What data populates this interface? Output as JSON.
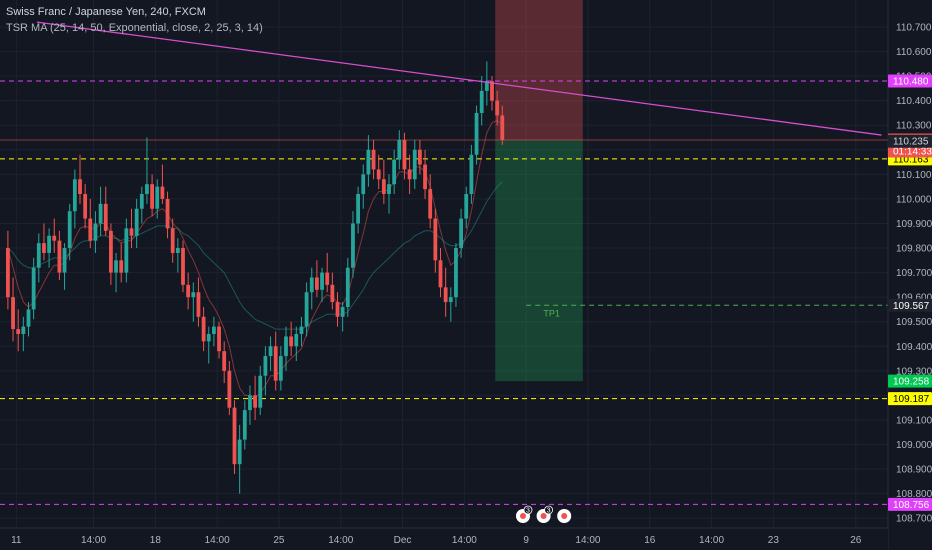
{
  "header": {
    "title": "Swiss Franc / Japanese Yen, 240, FXCM",
    "indicator": "TSR MA (25, 14, 50, Exponential, close, 2, 25, 3, 14)"
  },
  "colors": {
    "background": "#131722",
    "grid": "#1e2230",
    "bull": "#26a69a",
    "bear": "#ef5350",
    "magenta": "#e040fb",
    "yellow": "#ffff00",
    "green_line": "#4caf50",
    "trend": "#d54fd0"
  },
  "chart_data": {
    "type": "candlestick",
    "symbol": "CHFJPY",
    "timeframe": "240",
    "ylim": [
      108.66,
      110.81
    ],
    "y_ticks": [
      110.7,
      110.6,
      110.5,
      110.4,
      110.3,
      110.2,
      110.1,
      110.0,
      109.9,
      109.8,
      109.7,
      109.6,
      109.5,
      109.4,
      109.3,
      109.2,
      109.1,
      109.0,
      108.9,
      108.8,
      108.7
    ],
    "y_tick_labels": [
      "110.700",
      "110.600",
      "110.500",
      "110.400",
      "110.300",
      "110.200",
      "110.100",
      "110.000",
      "109.900",
      "109.800",
      "109.700",
      "109.600",
      "109.500",
      "109.400",
      "109.300",
      "109.200",
      "109.100",
      "109.000",
      "108.900",
      "108.800",
      "108.700"
    ],
    "x_ticks": [
      {
        "label": "11",
        "bar": 2
      },
      {
        "label": "14:00",
        "bar": 17
      },
      {
        "label": "18",
        "bar": 29
      },
      {
        "label": "14:00",
        "bar": 41
      },
      {
        "label": "25",
        "bar": 53
      },
      {
        "label": "14:00",
        "bar": 65
      },
      {
        "label": "Dec",
        "bar": 77
      },
      {
        "label": "14:00",
        "bar": 89
      },
      {
        "label": "9",
        "bar": 101
      },
      {
        "label": "14:00",
        "bar": 113
      },
      {
        "label": "16",
        "bar": 125
      },
      {
        "label": "14:00",
        "bar": 137
      },
      {
        "label": "23",
        "bar": 149
      },
      {
        "label": "26",
        "bar": 165
      }
    ],
    "candles": [
      [
        109.8,
        109.87,
        109.55,
        109.6
      ],
      [
        109.6,
        109.68,
        109.42,
        109.47
      ],
      [
        109.47,
        109.55,
        109.38,
        109.45
      ],
      [
        109.45,
        109.52,
        109.38,
        109.48
      ],
      [
        109.48,
        109.58,
        109.44,
        109.55
      ],
      [
        109.55,
        109.76,
        109.51,
        109.72
      ],
      [
        109.72,
        109.86,
        109.66,
        109.82
      ],
      [
        109.82,
        109.9,
        109.75,
        109.78
      ],
      [
        109.78,
        109.88,
        109.72,
        109.85
      ],
      [
        109.85,
        109.92,
        109.78,
        109.83
      ],
      [
        109.83,
        109.87,
        109.67,
        109.7
      ],
      [
        109.7,
        109.82,
        109.63,
        109.8
      ],
      [
        109.8,
        109.98,
        109.75,
        109.95
      ],
      [
        109.95,
        110.12,
        109.88,
        110.08
      ],
      [
        110.08,
        110.18,
        109.98,
        110.02
      ],
      [
        110.02,
        110.06,
        109.88,
        109.92
      ],
      [
        109.92,
        110.0,
        109.8,
        109.83
      ],
      [
        109.83,
        109.95,
        109.78,
        109.9
      ],
      [
        109.9,
        110.05,
        109.85,
        109.98
      ],
      [
        109.98,
        110.05,
        109.85,
        109.87
      ],
      [
        109.87,
        109.9,
        109.65,
        109.7
      ],
      [
        109.7,
        109.78,
        109.62,
        109.75
      ],
      [
        109.75,
        109.82,
        109.66,
        109.7
      ],
      [
        109.7,
        109.92,
        109.66,
        109.88
      ],
      [
        109.88,
        109.96,
        109.8,
        109.85
      ],
      [
        109.85,
        110.0,
        109.8,
        109.96
      ],
      [
        109.96,
        110.05,
        109.9,
        110.02
      ],
      [
        110.02,
        110.25,
        109.98,
        110.06
      ],
      [
        110.06,
        110.1,
        109.93,
        109.96
      ],
      [
        109.96,
        110.08,
        109.92,
        110.05
      ],
      [
        110.05,
        110.14,
        109.98,
        110.0
      ],
      [
        110.0,
        110.03,
        109.84,
        109.88
      ],
      [
        109.88,
        109.92,
        109.74,
        109.78
      ],
      [
        109.78,
        109.84,
        109.7,
        109.8
      ],
      [
        109.8,
        109.83,
        109.62,
        109.65
      ],
      [
        109.65,
        109.7,
        109.55,
        109.6
      ],
      [
        109.6,
        109.66,
        109.5,
        109.62
      ],
      [
        109.62,
        109.68,
        109.48,
        109.52
      ],
      [
        109.52,
        109.56,
        109.38,
        109.42
      ],
      [
        109.42,
        109.48,
        109.33,
        109.45
      ],
      [
        109.45,
        109.52,
        109.4,
        109.48
      ],
      [
        109.48,
        109.5,
        109.35,
        109.38
      ],
      [
        109.38,
        109.42,
        109.25,
        109.3
      ],
      [
        109.3,
        109.34,
        109.12,
        109.15
      ],
      [
        109.15,
        109.18,
        108.88,
        108.92
      ],
      [
        108.92,
        109.08,
        108.8,
        109.02
      ],
      [
        109.02,
        109.18,
        108.98,
        109.14
      ],
      [
        109.14,
        109.24,
        109.08,
        109.2
      ],
      [
        109.2,
        109.28,
        109.1,
        109.15
      ],
      [
        109.15,
        109.32,
        109.12,
        109.28
      ],
      [
        109.28,
        109.4,
        109.2,
        109.36
      ],
      [
        109.36,
        109.44,
        109.3,
        109.4
      ],
      [
        109.4,
        109.46,
        109.22,
        109.26
      ],
      [
        109.26,
        109.4,
        109.22,
        109.36
      ],
      [
        109.36,
        109.48,
        109.3,
        109.44
      ],
      [
        109.44,
        109.5,
        109.36,
        109.4
      ],
      [
        109.4,
        109.48,
        109.34,
        109.45
      ],
      [
        109.45,
        109.52,
        109.4,
        109.48
      ],
      [
        109.48,
        109.66,
        109.44,
        109.62
      ],
      [
        109.62,
        109.72,
        109.55,
        109.68
      ],
      [
        109.68,
        109.75,
        109.6,
        109.63
      ],
      [
        109.63,
        109.72,
        109.58,
        109.7
      ],
      [
        109.7,
        109.78,
        109.62,
        109.65
      ],
      [
        109.65,
        109.7,
        109.55,
        109.58
      ],
      [
        109.58,
        109.62,
        109.48,
        109.52
      ],
      [
        109.52,
        109.58,
        109.46,
        109.56
      ],
      [
        109.56,
        109.76,
        109.52,
        109.72
      ],
      [
        109.72,
        109.95,
        109.68,
        109.9
      ],
      [
        109.9,
        110.05,
        109.86,
        110.02
      ],
      [
        110.02,
        110.14,
        109.96,
        110.1
      ],
      [
        110.1,
        110.26,
        110.05,
        110.2
      ],
      [
        110.2,
        110.24,
        110.08,
        110.12
      ],
      [
        110.12,
        110.18,
        110.04,
        110.08
      ],
      [
        110.08,
        110.16,
        109.98,
        110.02
      ],
      [
        110.02,
        110.1,
        109.94,
        110.06
      ],
      [
        110.06,
        110.2,
        110.02,
        110.16
      ],
      [
        110.16,
        110.28,
        110.12,
        110.24
      ],
      [
        110.24,
        110.27,
        110.08,
        110.12
      ],
      [
        110.12,
        110.18,
        110.02,
        110.08
      ],
      [
        110.08,
        110.24,
        110.04,
        110.2
      ],
      [
        110.2,
        110.24,
        110.1,
        110.14
      ],
      [
        110.14,
        110.2,
        110.0,
        110.04
      ],
      [
        110.04,
        110.1,
        109.88,
        109.92
      ],
      [
        109.92,
        109.96,
        109.7,
        109.75
      ],
      [
        109.75,
        109.8,
        109.6,
        109.64
      ],
      [
        109.64,
        109.72,
        109.52,
        109.58
      ],
      [
        109.58,
        109.64,
        109.5,
        109.6
      ],
      [
        109.6,
        109.82,
        109.56,
        109.8
      ],
      [
        109.8,
        109.96,
        109.76,
        109.92
      ],
      [
        109.92,
        110.05,
        109.88,
        110.02
      ],
      [
        110.02,
        110.22,
        109.98,
        110.18
      ],
      [
        110.18,
        110.38,
        110.14,
        110.35
      ],
      [
        110.35,
        110.5,
        110.3,
        110.44
      ],
      [
        110.44,
        110.56,
        110.38,
        110.48
      ],
      [
        110.48,
        110.5,
        110.36,
        110.4
      ],
      [
        110.4,
        110.44,
        110.3,
        110.34
      ],
      [
        110.34,
        110.38,
        110.22,
        110.24
      ]
    ],
    "ma_fast": [
      109.8,
      109.72,
      109.64,
      109.58,
      109.56,
      109.58,
      109.62,
      109.66,
      109.7,
      109.73,
      109.73,
      109.74,
      109.78,
      109.84,
      109.88,
      109.89,
      109.88,
      109.88,
      109.9,
      109.9,
      109.86,
      109.84,
      109.82,
      109.83,
      109.83,
      109.86,
      109.89,
      109.92,
      109.93,
      109.95,
      109.96,
      109.94,
      109.9,
      109.88,
      109.84,
      109.79,
      109.75,
      109.7,
      109.64,
      109.59,
      109.56,
      109.52,
      109.47,
      109.4,
      109.3,
      109.23,
      109.2,
      109.2,
      109.19,
      109.21,
      109.24,
      109.28,
      109.28,
      109.3,
      109.33,
      109.35,
      109.37,
      109.39,
      109.45,
      109.51,
      109.55,
      109.59,
      109.61,
      109.6,
      109.58,
      109.57,
      109.61,
      109.69,
      109.78,
      109.86,
      109.95,
      110.0,
      110.03,
      110.03,
      110.04,
      110.07,
      110.11,
      110.11,
      110.1,
      110.13,
      110.13,
      110.11,
      110.05,
      109.96,
      109.87,
      109.79,
      109.73,
      109.75,
      109.79,
      109.86,
      109.95,
      110.07,
      110.18,
      110.27,
      110.31,
      110.32,
      110.3
    ],
    "ma_slow": [
      109.8,
      109.78,
      109.75,
      109.73,
      109.72,
      109.72,
      109.73,
      109.74,
      109.75,
      109.76,
      109.76,
      109.76,
      109.78,
      109.8,
      109.82,
      109.83,
      109.83,
      109.84,
      109.85,
      109.85,
      109.84,
      109.84,
      109.83,
      109.84,
      109.84,
      109.85,
      109.86,
      109.87,
      109.88,
      109.89,
      109.89,
      109.89,
      109.88,
      109.88,
      109.86,
      109.85,
      109.83,
      109.81,
      109.78,
      109.76,
      109.74,
      109.72,
      109.7,
      109.66,
      109.62,
      109.58,
      109.55,
      109.53,
      109.51,
      109.5,
      109.49,
      109.48,
      109.47,
      109.47,
      109.47,
      109.47,
      109.47,
      109.47,
      109.48,
      109.5,
      109.51,
      109.52,
      109.53,
      109.53,
      109.53,
      109.53,
      109.54,
      109.57,
      109.6,
      109.63,
      109.67,
      109.7,
      109.72,
      109.74,
      109.76,
      109.78,
      109.8,
      109.82,
      109.83,
      109.85,
      109.86,
      109.87,
      109.87,
      109.86,
      109.84,
      109.82,
      109.81,
      109.81,
      109.82,
      109.84,
      109.87,
      109.91,
      109.95,
      109.99,
      110.02,
      110.05,
      110.07
    ],
    "trendline": {
      "start": {
        "bar": 6,
        "price": 110.72
      },
      "end": {
        "bar": 170,
        "price": 110.26
      }
    },
    "levels": [
      {
        "name": "resistance-top",
        "price": 110.48,
        "color": "#e040fb",
        "style": "dashed",
        "label": "110.480"
      },
      {
        "name": "support-bottom",
        "price": 108.756,
        "color": "#e040fb",
        "style": "dashed",
        "label": "108.756"
      },
      {
        "name": "yellow-upper",
        "price": 110.163,
        "color": "#ffff00",
        "style": "dashed",
        "label": "110.163"
      },
      {
        "name": "yellow-lower",
        "price": 109.187,
        "color": "#ffff00",
        "style": "dashed",
        "label": "109.187"
      },
      {
        "name": "tp1-line",
        "price": 109.567,
        "color": "#4caf50",
        "style": "dashed",
        "label": "109.567"
      },
      {
        "name": "current-price",
        "price": 110.24,
        "color": "#ef5350",
        "style": "solid",
        "label": "110.240"
      }
    ],
    "price_badges": [
      {
        "name": "countdown",
        "price": 110.195,
        "label": "01:14:33",
        "bg": "#ef5350",
        "fg": "#ffffff"
      },
      {
        "name": "mid-price",
        "price": 110.235,
        "label": "110.235",
        "bg": "#1e222d",
        "fg": "#d1d4dc"
      },
      {
        "name": "stop-target",
        "price": 109.258,
        "label": "109.258",
        "bg": "#00c853",
        "fg": "#ffffff"
      }
    ],
    "position": {
      "type": "short",
      "entry": 110.24,
      "stop": 110.81,
      "target": 109.258,
      "start_bar": 95,
      "end_bar": 112,
      "tp_label": "TP1",
      "tp_price": 109.567
    },
    "events": [
      {
        "bar": 100,
        "label": "3"
      },
      {
        "bar": 104,
        "label": "3"
      },
      {
        "bar": 108,
        "label": ""
      }
    ]
  }
}
